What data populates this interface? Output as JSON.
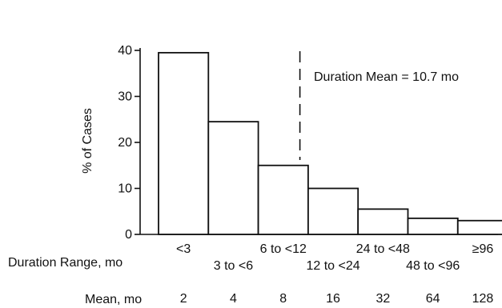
{
  "chart_data": {
    "type": "bar",
    "categories": [
      "<3",
      "3 to <6",
      "6 to <12",
      "12 to <24",
      "24 to <48",
      "48 to <96",
      "≥96"
    ],
    "values": [
      39.5,
      24.5,
      15,
      10,
      5.5,
      3.5,
      3
    ],
    "category_means": [
      "2",
      "4",
      "8",
      "16",
      "32",
      "64",
      "128"
    ],
    "xlabel": "Duration Range, mo",
    "ylabel": "% of Cases",
    "mean_row_label": "Mean, mo",
    "ylim": [
      0,
      40
    ],
    "yticks": [
      "0",
      "10",
      "20",
      "30",
      "40"
    ],
    "annotation": "Duration Mean = 10.7 mo",
    "mean_duration_months": 10.7,
    "grid": false,
    "bar_color": "#ffffff",
    "line_color": "#111111"
  }
}
